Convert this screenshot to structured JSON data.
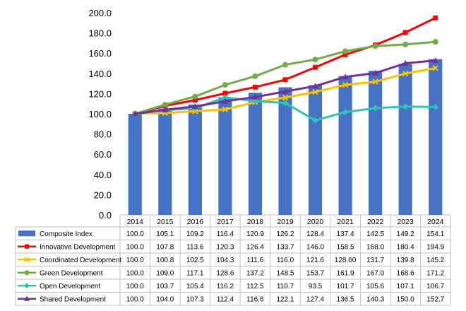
{
  "chart_data": {
    "type": "bar+line",
    "title": "",
    "xlabel": "",
    "ylabel": "",
    "ylim": [
      0,
      200
    ],
    "ytick_step": 20,
    "ytick_labels": [
      "0.0",
      "20.0",
      "40.0",
      "60.0",
      "80.0",
      "100.0",
      "120.0",
      "140.0",
      "160.0",
      "180.0",
      "200.0"
    ],
    "grid": false,
    "categories": [
      "2014",
      "2015",
      "2016",
      "2017",
      "2018",
      "2019",
      "2020",
      "2021",
      "2022",
      "2023",
      "2024"
    ],
    "series": [
      {
        "name": "Composite Index",
        "kind": "bar",
        "marker": "none",
        "color": "#4472C4",
        "values": [
          100.0,
          105.1,
          109.2,
          116.4,
          120.9,
          126.2,
          128.4,
          137.4,
          142.5,
          149.2,
          154.1
        ],
        "labels": [
          "100.0",
          "105.1",
          "109.2",
          "116.4",
          "120.9",
          "126.2",
          "128.4",
          "137.4",
          "142.5",
          "149.2",
          "154.1"
        ]
      },
      {
        "name": "Innovative Development",
        "kind": "line",
        "marker": "square",
        "color": "#FF0000",
        "values": [
          100.0,
          107.8,
          113.6,
          120.3,
          126.4,
          133.7,
          146.0,
          158.5,
          168.0,
          180.4,
          194.9
        ],
        "labels": [
          "100.0",
          "107.8",
          "113.6",
          "120.3",
          "126.4",
          "133.7",
          "146.0",
          "158.5",
          "168.0",
          "180.4",
          "194.9"
        ]
      },
      {
        "name": "Coordinated Development",
        "kind": "line",
        "marker": "x",
        "color": "#FFC000",
        "values": [
          100.0,
          100.8,
          102.5,
          104.3,
          111.6,
          116.0,
          121.6,
          128.6,
          131.7,
          139.8,
          145.2
        ],
        "labels": [
          "100.0",
          "100.8",
          "102.5",
          "104.3",
          "111.6",
          "116.0",
          "121.6",
          "128.60",
          "131.7",
          "139.8",
          "145.2"
        ]
      },
      {
        "name": "Green Development",
        "kind": "line",
        "marker": "circle",
        "color": "#70AD47",
        "values": [
          100.0,
          109.0,
          117.1,
          128.6,
          137.2,
          148.5,
          153.7,
          161.9,
          167.0,
          168.6,
          171.2
        ],
        "labels": [
          "100.0",
          "109.0",
          "117.1",
          "128.6",
          "137.2",
          "148.5",
          "153.7",
          "161.9",
          "167.0",
          "168.6",
          "171.2"
        ]
      },
      {
        "name": "Open Development",
        "kind": "line",
        "marker": "diamond",
        "color": "#2EC4B6",
        "values": [
          100.0,
          103.7,
          105.4,
          116.2,
          112.5,
          110.7,
          93.5,
          101.7,
          105.6,
          107.1,
          106.7
        ],
        "labels": [
          "100.0",
          "103.7",
          "105.4",
          "116.2",
          "112.5",
          "110.7",
          "93.5",
          "101.7",
          "105.6",
          "107.1",
          "106.7"
        ]
      },
      {
        "name": "Shared Development",
        "kind": "line",
        "marker": "triangle",
        "color": "#7030A0",
        "values": [
          100.0,
          104.0,
          107.3,
          112.4,
          116.6,
          122.1,
          127.4,
          136.5,
          140.3,
          150.0,
          152.7
        ],
        "labels": [
          "100.0",
          "104.0",
          "107.3",
          "112.4",
          "116.6",
          "122.1",
          "127.4",
          "136.5",
          "140.3",
          "150.0",
          "152.7"
        ]
      }
    ],
    "legend": "table-below"
  }
}
